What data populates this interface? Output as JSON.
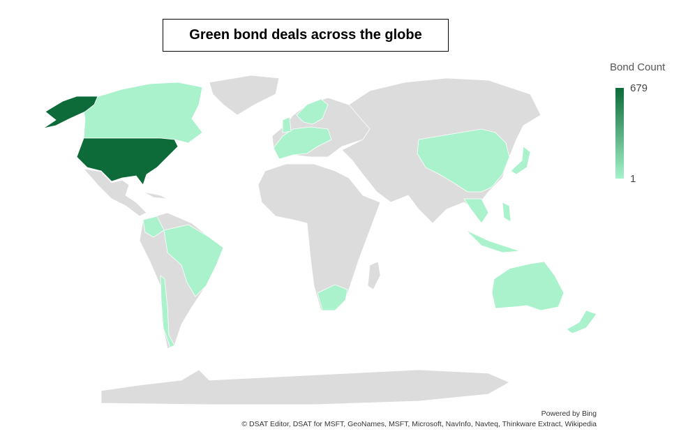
{
  "title": "Green bond deals across the globe",
  "legend": {
    "title": "Bond Count",
    "max": 679,
    "min": 1
  },
  "attribution": {
    "line1": "Powered by Bing",
    "line2": "© DSAT Editor, DSAT for MSFT, GeoNames, MSFT, Microsoft, NavInfo, Navteq, Thinkware Extract, Wikipedia"
  }
}
